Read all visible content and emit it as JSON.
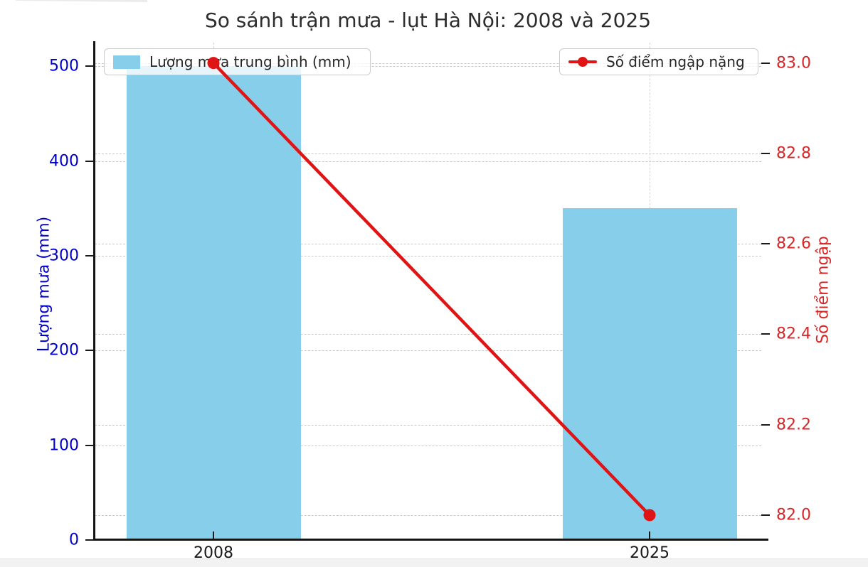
{
  "title": "So sánh trận mưa - lụt Hà Nội: 2008 và 2025",
  "left_axis": {
    "label": "Lượng mưa (mm)",
    "color": "#0000CD",
    "tick_labels": [
      "0",
      "100",
      "200",
      "300",
      "400",
      "500"
    ],
    "tick_values": [
      0,
      100,
      200,
      300,
      400,
      500
    ]
  },
  "right_axis": {
    "label": "Số điểm ngập",
    "color": "#D62728",
    "tick_labels": [
      "82.0",
      "82.2",
      "82.4",
      "82.6",
      "82.8",
      "83.0"
    ],
    "tick_values": [
      82.0,
      82.2,
      82.4,
      82.6,
      82.8,
      83.0
    ]
  },
  "x_axis": {
    "tick_labels": [
      "2008",
      "2025"
    ]
  },
  "legend_left": {
    "label": "Lượng mưa trung bình (mm)",
    "swatch_color": "#87CEEB"
  },
  "legend_right": {
    "label": "Số điểm ngập nặng",
    "line_color": "#E01414",
    "marker": "circle"
  },
  "chart_data": {
    "type": "bar",
    "categories": [
      "2008",
      "2025"
    ],
    "series": [
      {
        "name": "Lượng mưa trung bình (mm)",
        "type": "bar",
        "y_axis": "left",
        "color": "#87CEEB",
        "values": [
          500,
          350
        ]
      },
      {
        "name": "Số điểm ngập nặng",
        "type": "line",
        "y_axis": "right",
        "color": "#E01414",
        "marker": "circle",
        "values": [
          83.0,
          82.0
        ]
      }
    ],
    "title": "So sánh trận mưa - lụt Hà Nội: 2008 và 2025",
    "xlabel": "",
    "left_ylabel": "Lượng mưa (mm)",
    "right_ylabel": "Số điểm ngập",
    "left_ylim": [
      0,
      525
    ],
    "right_ylim": [
      81.945,
      83.045
    ],
    "grid": true,
    "grid_style": "dashed",
    "legend_positions": [
      "upper left",
      "upper right"
    ]
  }
}
